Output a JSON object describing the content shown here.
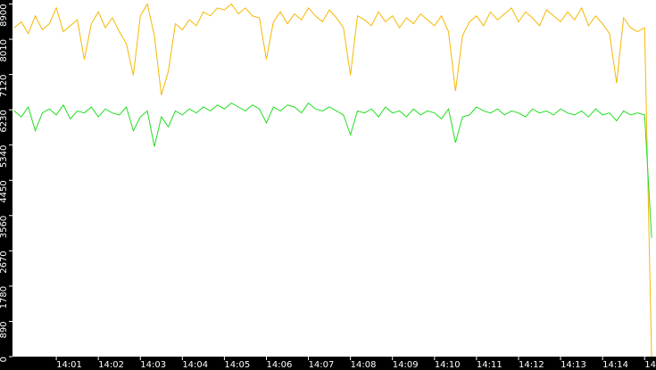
{
  "chart_data": {
    "type": "line",
    "categories": [
      null,
      null,
      null,
      null,
      null,
      null,
      "14:01",
      null,
      null,
      null,
      null,
      null,
      "14:02",
      null,
      null,
      null,
      null,
      null,
      "14:03",
      null,
      null,
      null,
      null,
      null,
      "14:04",
      null,
      null,
      null,
      null,
      null,
      "14:05",
      null,
      null,
      null,
      null,
      null,
      "14:06",
      null,
      null,
      null,
      null,
      null,
      "14:07",
      null,
      null,
      null,
      null,
      null,
      "14:08",
      null,
      null,
      null,
      null,
      null,
      "14:09",
      null,
      null,
      null,
      null,
      null,
      "14:10",
      null,
      null,
      null,
      null,
      null,
      "14:11",
      null,
      null,
      null,
      null,
      null,
      "14:12",
      null,
      null,
      null,
      null,
      null,
      "14:13",
      null,
      null,
      null,
      null,
      null,
      "14:14",
      null,
      null,
      null,
      null,
      null,
      "14",
      null
    ],
    "series": [
      {
        "color": "#f5b800",
        "values": [
          8300,
          8450,
          8150,
          8600,
          8250,
          8400,
          8800,
          8200,
          8350,
          8500,
          7500,
          8400,
          8700,
          8300,
          8550,
          8200,
          7900,
          7100,
          8600,
          8900,
          8100,
          6600,
          7200,
          8400,
          8250,
          8500,
          8350,
          8700,
          8600,
          8800,
          8750,
          8900,
          8650,
          8800,
          8600,
          8550,
          7500,
          8450,
          8700,
          8400,
          8650,
          8500,
          8800,
          8600,
          8450,
          8750,
          8550,
          8300,
          7100,
          8600,
          8500,
          8350,
          8700,
          8450,
          8600,
          8300,
          8550,
          8400,
          8650,
          8500,
          8350,
          8600,
          8200,
          6700,
          8100,
          8450,
          8600,
          8350,
          8700,
          8500,
          8650,
          8800,
          8450,
          8700,
          8550,
          8350,
          8750,
          8600,
          8450,
          8700,
          8500,
          8800,
          8350,
          8600,
          8400,
          8150,
          6900,
          8550,
          8300,
          8200,
          8300,
          0
        ]
      },
      {
        "color": "#22dd22",
        "values": [
          6200,
          6050,
          6300,
          5700,
          6150,
          6250,
          6100,
          6350,
          6000,
          6200,
          6150,
          6300,
          6050,
          6250,
          6150,
          6100,
          6300,
          5700,
          6050,
          6200,
          5300,
          6050,
          5800,
          6200,
          6100,
          6250,
          6150,
          6300,
          6200,
          6350,
          6250,
          6400,
          6300,
          6200,
          6350,
          6250,
          5900,
          6300,
          6200,
          6350,
          6300,
          6150,
          6400,
          6250,
          6200,
          6300,
          6200,
          6100,
          5600,
          6200,
          6150,
          6250,
          6050,
          6300,
          6150,
          6200,
          6050,
          6250,
          6100,
          6200,
          6150,
          6000,
          6250,
          5400,
          6050,
          6100,
          6300,
          6200,
          6150,
          6250,
          6100,
          6200,
          6150,
          6050,
          6250,
          6150,
          6200,
          6100,
          6250,
          6150,
          6100,
          6200,
          6050,
          6250,
          6100,
          6150,
          5950,
          6200,
          6100,
          6150,
          6100,
          3000
        ]
      }
    ],
    "ylim": [
      0,
      9000
    ],
    "yticks": [
      0,
      890,
      1780,
      2670,
      3560,
      4450,
      5340,
      6230,
      7120,
      8010,
      8900
    ]
  }
}
